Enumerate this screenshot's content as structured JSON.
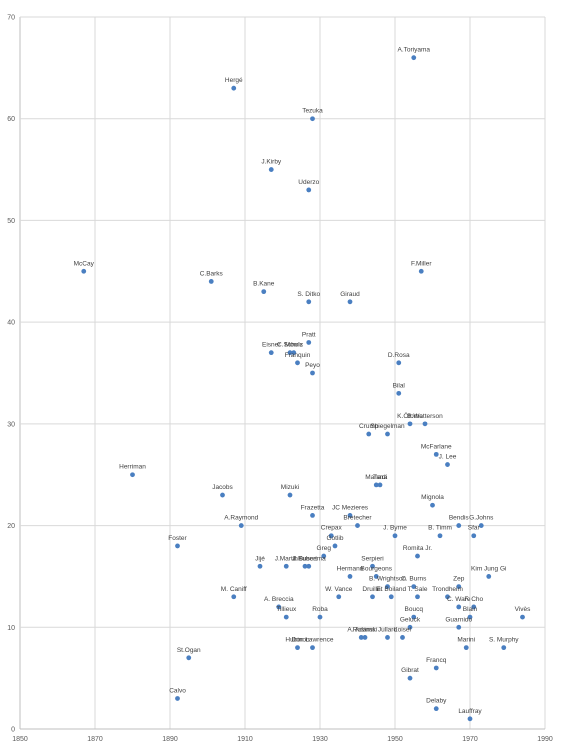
{
  "chart_data": {
    "type": "scatter",
    "title": "",
    "xlabel": "",
    "ylabel": "",
    "xlim": [
      1850,
      1990
    ],
    "ylim": [
      0,
      70
    ],
    "x_ticks": [
      "1850",
      "1870",
      "1890",
      "1910",
      "1930",
      "1950",
      "1970",
      "1990"
    ],
    "y_ticks": [
      "0",
      "10",
      "20",
      "30",
      "40",
      "50",
      "60",
      "70"
    ],
    "grid": true,
    "color": "#4a7fc1",
    "points": [
      {
        "label": "A.Toriyama",
        "x": 1955,
        "y": 66
      },
      {
        "label": "Hergé",
        "x": 1907,
        "y": 63
      },
      {
        "label": "Tezuka",
        "x": 1928,
        "y": 60
      },
      {
        "label": "J.Kirby",
        "x": 1917,
        "y": 55
      },
      {
        "label": "Uderzo",
        "x": 1927,
        "y": 53
      },
      {
        "label": "McCay",
        "x": 1867,
        "y": 45
      },
      {
        "label": "C.Barks",
        "x": 1901,
        "y": 44
      },
      {
        "label": "F.Miller",
        "x": 1957,
        "y": 45
      },
      {
        "label": "B.Kane",
        "x": 1915,
        "y": 43
      },
      {
        "label": "S. Ditko",
        "x": 1927,
        "y": 42
      },
      {
        "label": "Giraud",
        "x": 1938,
        "y": 42
      },
      {
        "label": "Pratt",
        "x": 1927,
        "y": 38
      },
      {
        "label": "Eisner",
        "x": 1917,
        "y": 37
      },
      {
        "label": "C.Schulz",
        "x": 1922,
        "y": 37
      },
      {
        "label": "Morris",
        "x": 1923,
        "y": 37
      },
      {
        "label": "D.Rosa",
        "x": 1951,
        "y": 36
      },
      {
        "label": "Franquin",
        "x": 1924,
        "y": 36
      },
      {
        "label": "Peyo",
        "x": 1928,
        "y": 35
      },
      {
        "label": "Bilal",
        "x": 1951,
        "y": 33
      },
      {
        "label": "K.Ötomo",
        "x": 1954,
        "y": 30
      },
      {
        "label": "B.Watterson",
        "x": 1958,
        "y": 30
      },
      {
        "label": "Crumb",
        "x": 1943,
        "y": 29
      },
      {
        "label": "Spiegelman",
        "x": 1948,
        "y": 29
      },
      {
        "label": "McFarlane",
        "x": 1961,
        "y": 27
      },
      {
        "label": "J. Lee",
        "x": 1964,
        "y": 26
      },
      {
        "label": "Herriman",
        "x": 1880,
        "y": 25
      },
      {
        "label": "Manara",
        "x": 1945,
        "y": 24
      },
      {
        "label": "Tardi",
        "x": 1946,
        "y": 24
      },
      {
        "label": "Jacobs",
        "x": 1904,
        "y": 23
      },
      {
        "label": "Mizuki",
        "x": 1922,
        "y": 23
      },
      {
        "label": "Mignola",
        "x": 1960,
        "y": 22
      },
      {
        "label": "Frazetta",
        "x": 1928,
        "y": 21
      },
      {
        "label": "JC Mezieres",
        "x": 1938,
        "y": 21
      },
      {
        "label": "Bretecher",
        "x": 1940,
        "y": 20
      },
      {
        "label": "A.Raymond",
        "x": 1909,
        "y": 20
      },
      {
        "label": "Bendis",
        "x": 1967,
        "y": 20
      },
      {
        "label": "G.Johns",
        "x": 1973,
        "y": 20
      },
      {
        "label": "B. Timm",
        "x": 1962,
        "y": 19
      },
      {
        "label": "J. Byrne",
        "x": 1950,
        "y": 19
      },
      {
        "label": "Crepax",
        "x": 1933,
        "y": 19
      },
      {
        "label": "Sfar",
        "x": 1971,
        "y": 19
      },
      {
        "label": "Gotlib",
        "x": 1934,
        "y": 18
      },
      {
        "label": "Foster",
        "x": 1892,
        "y": 18
      },
      {
        "label": "Greg",
        "x": 1931,
        "y": 17
      },
      {
        "label": "Romita Jr.",
        "x": 1956,
        "y": 17
      },
      {
        "label": "Jijé",
        "x": 1914,
        "y": 16
      },
      {
        "label": "J.Martin",
        "x": 1921,
        "y": 16
      },
      {
        "label": "J. Buscema",
        "x": 1927,
        "y": 16
      },
      {
        "label": "J.Kubert",
        "x": 1926,
        "y": 16
      },
      {
        "label": "Serpieri",
        "x": 1944,
        "y": 16
      },
      {
        "label": "Kim Jung Gi",
        "x": 1975,
        "y": 15
      },
      {
        "label": "Hermann",
        "x": 1938,
        "y": 15
      },
      {
        "label": "Bourgeons",
        "x": 1945,
        "y": 15
      },
      {
        "label": "Zep",
        "x": 1967,
        "y": 14
      },
      {
        "label": "C. Burns",
        "x": 1955,
        "y": 14
      },
      {
        "label": "M. Caniff",
        "x": 1907,
        "y": 13
      },
      {
        "label": "W. Vance",
        "x": 1935,
        "y": 13
      },
      {
        "label": "B. Wrightson",
        "x": 1948,
        "y": 14
      },
      {
        "label": "Trondheim",
        "x": 1964,
        "y": 13
      },
      {
        "label": "A. Breccia",
        "x": 1919,
        "y": 12
      },
      {
        "label": "Druillet",
        "x": 1944,
        "y": 13
      },
      {
        "label": "E. Boiland",
        "x": 1949,
        "y": 13
      },
      {
        "label": "T. Sale",
        "x": 1956,
        "y": 13
      },
      {
        "label": "C. Ware",
        "x": 1967,
        "y": 12
      },
      {
        "label": "F. Cho",
        "x": 1971,
        "y": 12
      },
      {
        "label": "Vivès",
        "x": 1984,
        "y": 11
      },
      {
        "label": "Tillieux",
        "x": 1921,
        "y": 11
      },
      {
        "label": "Boucq",
        "x": 1955,
        "y": 11
      },
      {
        "label": "Blain",
        "x": 1970,
        "y": 11
      },
      {
        "label": "Roba",
        "x": 1930,
        "y": 11
      },
      {
        "label": "A. Adams",
        "x": 1941,
        "y": 9
      },
      {
        "label": "Guarnido",
        "x": 1967,
        "y": 10
      },
      {
        "label": "Rosinski",
        "x": 1942,
        "y": 9
      },
      {
        "label": "Jullard",
        "x": 1948,
        "y": 9
      },
      {
        "label": "Geluck",
        "x": 1954,
        "y": 10
      },
      {
        "label": "Loisel",
        "x": 1952,
        "y": 9
      },
      {
        "label": "Hubinon",
        "x": 1924,
        "y": 8
      },
      {
        "label": "Don Lawrence",
        "x": 1928,
        "y": 8
      },
      {
        "label": "Marini",
        "x": 1969,
        "y": 8
      },
      {
        "label": "S. Murphy",
        "x": 1979,
        "y": 8
      },
      {
        "label": "St.Ogan",
        "x": 1895,
        "y": 7
      },
      {
        "label": "Francq",
        "x": 1961,
        "y": 6
      },
      {
        "label": "Gibrat",
        "x": 1954,
        "y": 5
      },
      {
        "label": "Calvo",
        "x": 1892,
        "y": 3
      },
      {
        "label": "Delaby",
        "x": 1961,
        "y": 2
      },
      {
        "label": "Lauffray",
        "x": 1970,
        "y": 1
      }
    ]
  }
}
